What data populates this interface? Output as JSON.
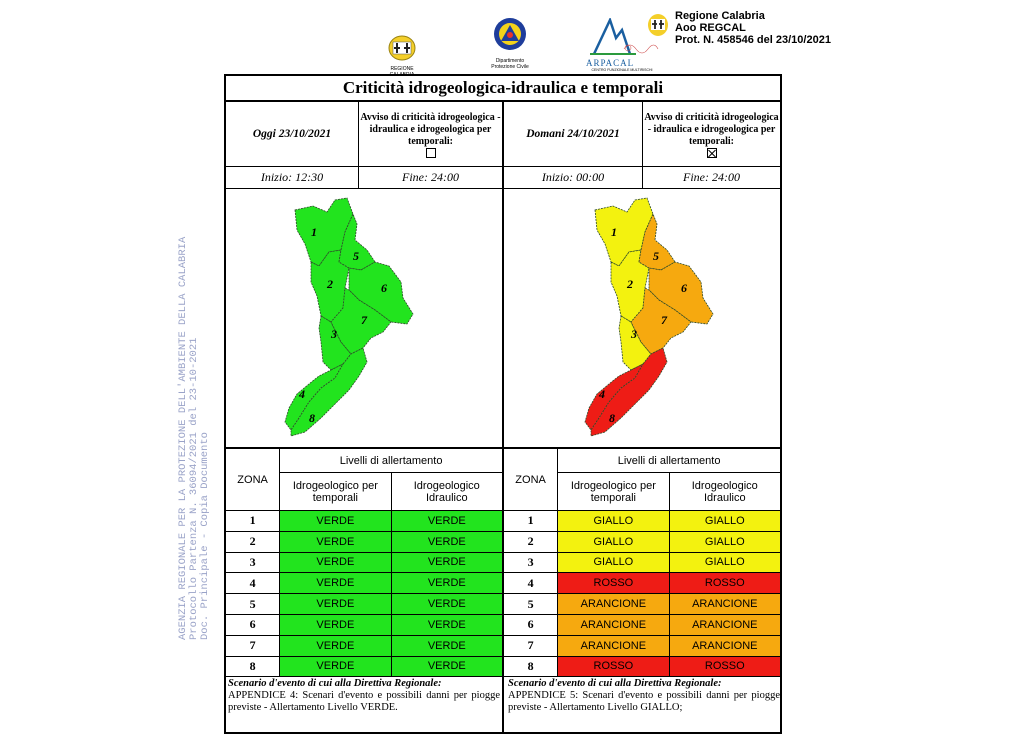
{
  "header": {
    "regione_label": "REGIONE CALABRIA",
    "protezione_label": "Dipartimento\nProtezione Civile",
    "arpacal_label": "ARPACAL",
    "arpacal_sub": "CENTRO FUNZIONALE MULTIRISCHI",
    "protocol_lines": [
      "Regione Calabria",
      "Aoo REGCAL",
      "Prot. N. 458546 del 23/10/2021"
    ]
  },
  "watermark": {
    "lines": [
      "AGENZIA REGIONALE PER LA PROTEZIONE DELL'AMBIENTE DELLA CALABRIA",
      "Protocollo Partenza N. 36094/2021 del 23-10-2021",
      "Doc. Principale - Copia Documento"
    ]
  },
  "title": "Criticità idrogeologica-idraulica e temporali",
  "left": {
    "date": "Oggi 23/10/2021",
    "avviso": "Avviso di criticità idrogeologica - idraulica e idrogeologica per temporali:",
    "avviso_checked": false,
    "inizio": "Inizio: 12:30",
    "fine": "Fine: 24:00",
    "zone_colors": {
      "1": "#22e41e",
      "2": "#22e41e",
      "3": "#22e41e",
      "4": "#22e41e",
      "5": "#22e41e",
      "6": "#22e41e",
      "7": "#22e41e",
      "8": "#22e41e"
    },
    "rows": [
      {
        "zona": "1",
        "temp": "VERDE",
        "idra": "VERDE",
        "t": "verde",
        "i": "verde"
      },
      {
        "zona": "2",
        "temp": "VERDE",
        "idra": "VERDE",
        "t": "verde",
        "i": "verde"
      },
      {
        "zona": "3",
        "temp": "VERDE",
        "idra": "VERDE",
        "t": "verde",
        "i": "verde"
      },
      {
        "zona": "4",
        "temp": "VERDE",
        "idra": "VERDE",
        "t": "verde",
        "i": "verde"
      },
      {
        "zona": "5",
        "temp": "VERDE",
        "idra": "VERDE",
        "t": "verde",
        "i": "verde"
      },
      {
        "zona": "6",
        "temp": "VERDE",
        "idra": "VERDE",
        "t": "verde",
        "i": "verde"
      },
      {
        "zona": "7",
        "temp": "VERDE",
        "idra": "VERDE",
        "t": "verde",
        "i": "verde"
      },
      {
        "zona": "8",
        "temp": "VERDE",
        "idra": "VERDE",
        "t": "verde",
        "i": "verde"
      }
    ],
    "scenario_title": "Scenario d'evento di cui alla Direttiva Regionale:",
    "scenario_text": "APPENDICE 4: Scenari d'evento e possibili danni per piogge previste - Allertamento Livello VERDE."
  },
  "right": {
    "date": "Domani 24/10/2021",
    "avviso": "Avviso di criticità idrogeologica - idraulica e idrogeologica per temporali:",
    "avviso_checked": true,
    "inizio": "Inizio: 00:00",
    "fine": "Fine: 24:00",
    "zone_colors": {
      "1": "#f3f20f",
      "2": "#f3f20f",
      "3": "#f3f20f",
      "4": "#ee1c16",
      "5": "#f6a90f",
      "6": "#f6a90f",
      "7": "#f6a90f",
      "8": "#ee1c16"
    },
    "rows": [
      {
        "zona": "1",
        "temp": "GIALLO",
        "idra": "GIALLO",
        "t": "giallo",
        "i": "giallo"
      },
      {
        "zona": "2",
        "temp": "GIALLO",
        "idra": "GIALLO",
        "t": "giallo",
        "i": "giallo"
      },
      {
        "zona": "3",
        "temp": "GIALLO",
        "idra": "GIALLO",
        "t": "giallo",
        "i": "giallo"
      },
      {
        "zona": "4",
        "temp": "ROSSO",
        "idra": "ROSSO",
        "t": "rosso",
        "i": "rosso"
      },
      {
        "zona": "5",
        "temp": "ARANCIONE",
        "idra": "ARANCIONE",
        "t": "arancione",
        "i": "arancione"
      },
      {
        "zona": "6",
        "temp": "ARANCIONE",
        "idra": "ARANCIONE",
        "t": "arancione",
        "i": "arancione"
      },
      {
        "zona": "7",
        "temp": "ARANCIONE",
        "idra": "ARANCIONE",
        "t": "arancione",
        "i": "arancione"
      },
      {
        "zona": "8",
        "temp": "ROSSO",
        "idra": "ROSSO",
        "t": "rosso",
        "i": "rosso"
      }
    ],
    "scenario_title": "Scenario d'evento di cui alla Direttiva Regionale:",
    "scenario_text": "APPENDICE 5: Scenari d'evento e possibili danni per piogge previste - Allertamento Livello GIALLO;"
  },
  "table_headers": {
    "zona": "ZONA",
    "livelli": "Livelli di allertamento",
    "temporali": "Idrogeologico per temporali",
    "idraulico": "Idrogeologico Idraulico"
  },
  "zone_numbers": [
    "1",
    "2",
    "3",
    "4",
    "5",
    "6",
    "7",
    "8"
  ]
}
